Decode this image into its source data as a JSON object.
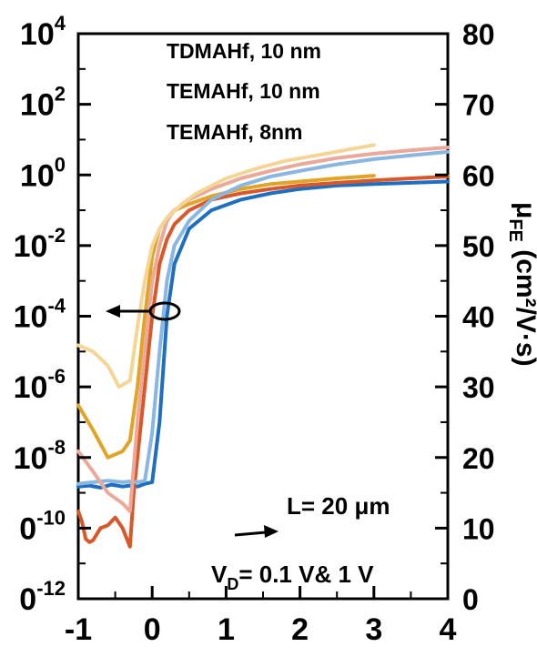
{
  "chart_data": {
    "type": "line",
    "title": "",
    "xlabel": "",
    "xlim": [
      -1,
      4
    ],
    "x_ticks": [
      "-1",
      "0",
      "1",
      "2",
      "3",
      "4"
    ],
    "y_left": {
      "scale": "log",
      "ylim": [
        1e-12,
        10000.0
      ],
      "tick_labels": [
        {
          "base": "10",
          "exp": "4",
          "value": 10000.0
        },
        {
          "base": "10",
          "exp": "2",
          "value": 100.0
        },
        {
          "base": "10",
          "exp": "0",
          "value": 1.0
        },
        {
          "base": "10",
          "exp": "-2",
          "value": 0.01
        },
        {
          "base": "10",
          "exp": "-4",
          "value": 0.0001
        },
        {
          "base": "10",
          "exp": "-6",
          "value": 1e-06
        },
        {
          "base": "10",
          "exp": "-8",
          "value": 1e-08
        },
        {
          "base": "0",
          "exp": "-10",
          "value": 1e-10
        },
        {
          "base": "0",
          "exp": "-12",
          "value": 1e-12
        }
      ]
    },
    "y_right": {
      "ylim": [
        0,
        80
      ],
      "tick_labels": [
        "80",
        "70",
        "60",
        "50",
        "40",
        "30",
        "20",
        "10",
        "0"
      ],
      "tick_values": [
        80,
        70,
        60,
        50,
        40,
        30,
        20,
        10,
        0
      ],
      "label_main": "μ",
      "label_sub": "FE",
      "label_rest": " (cm²/V·s)"
    },
    "legend": {
      "placement": "top-center",
      "entries": [
        "TDMAHf, 10 nm",
        "TEMAHf, 10 nm",
        "TEMAHf, 8nm"
      ]
    },
    "annotations": {
      "length_prefix": "L",
      "length_rest": "= 20 μm",
      "vd_main": "V",
      "vd_sub": "D",
      "vd_rest": "= 0.1 V& 1 V"
    },
    "series": [
      {
        "axis": "left",
        "color": "#1f6fc0",
        "x": [
          -1.0,
          -0.85,
          -0.7,
          -0.55,
          -0.4,
          -0.3,
          -0.2,
          -0.1,
          0.0,
          0.1,
          0.2,
          0.3,
          0.5,
          0.8,
          1.2,
          1.6,
          2.0,
          2.5,
          3.0,
          3.5,
          4.0
        ],
        "y": [
          1.5e-09,
          1.6e-09,
          1.4e-09,
          1.7e-09,
          1.5e-09,
          1.6e-09,
          1.5e-09,
          1.8e-09,
          2e-09,
          1e-07,
          0.0001,
          0.003,
          0.03,
          0.1,
          0.2,
          0.3,
          0.4,
          0.5,
          0.55,
          0.6,
          0.65
        ]
      },
      {
        "axis": "left",
        "color": "#d9582a",
        "x": [
          -1.0,
          -0.95,
          -0.9,
          -0.85,
          -0.8,
          -0.7,
          -0.6,
          -0.5,
          -0.4,
          -0.3,
          -0.25,
          -0.2,
          -0.1,
          0.0,
          0.1,
          0.2,
          0.3,
          0.5,
          0.8,
          1.2,
          1.6,
          2.0,
          2.5,
          3.0,
          3.5,
          4.0
        ],
        "y": [
          3e-10,
          1.5e-10,
          5e-11,
          4e-11,
          4.5e-11,
          1e-10,
          1.2e-10,
          2e-10,
          1e-10,
          3e-11,
          1e-09,
          1e-08,
          1e-06,
          0.0001,
          0.003,
          0.015,
          0.04,
          0.1,
          0.2,
          0.3,
          0.4,
          0.5,
          0.6,
          0.7,
          0.8,
          0.9
        ]
      },
      {
        "axis": "left",
        "color": "#e0a526",
        "x": [
          -1.0,
          -0.8,
          -0.6,
          -0.4,
          -0.3,
          -0.2,
          -0.1,
          0.0,
          0.1,
          0.2,
          0.3,
          0.5,
          0.8,
          1.2,
          1.6,
          2.0,
          2.5,
          3.0
        ],
        "y": [
          3e-07,
          6e-08,
          1e-08,
          1.5e-08,
          3e-08,
          1e-06,
          0.0001,
          0.005,
          0.03,
          0.06,
          0.1,
          0.15,
          0.25,
          0.4,
          0.55,
          0.65,
          0.8,
          0.95
        ]
      },
      {
        "axis": "left",
        "color": "#8ab7e2",
        "x": [
          -1.0,
          -0.8,
          -0.6,
          -0.4,
          -0.3,
          -0.2,
          -0.1,
          0.0,
          0.1,
          0.2,
          0.3,
          0.5,
          0.8,
          1.2,
          1.6,
          2.0,
          2.5,
          3.0,
          3.5,
          4.0
        ],
        "y": [
          1.8e-09,
          2e-09,
          2.2e-09,
          2e-09,
          2.1e-09,
          2e-09,
          2.2e-09,
          5e-08,
          1e-05,
          0.001,
          0.01,
          0.05,
          0.2,
          0.5,
          0.9,
          1.3,
          2.0,
          2.8,
          3.6,
          4.5
        ]
      },
      {
        "axis": "left",
        "color": "#eba99a",
        "x": [
          -1.0,
          -0.8,
          -0.6,
          -0.4,
          -0.3,
          -0.2,
          -0.1,
          0.0,
          0.1,
          0.2,
          0.3,
          0.5,
          0.8,
          1.2,
          1.6,
          2.0,
          2.5,
          3.0,
          3.5,
          4.0
        ],
        "y": [
          1.5e-08,
          4e-09,
          1e-09,
          5e-10,
          3e-10,
          1e-07,
          1e-05,
          0.001,
          0.01,
          0.05,
          0.1,
          0.2,
          0.4,
          0.8,
          1.3,
          2.0,
          3.0,
          4.0,
          5.0,
          6.0
        ]
      },
      {
        "axis": "left",
        "color": "#f4d596",
        "x": [
          -1.0,
          -0.8,
          -0.6,
          -0.45,
          -0.3,
          -0.2,
          -0.1,
          0.0,
          0.1,
          0.2,
          0.4,
          0.6,
          1.0,
          1.4,
          1.8,
          2.2,
          2.6,
          3.0
        ],
        "y": [
          1.5e-05,
          1e-05,
          4e-06,
          1e-06,
          1.5e-06,
          5e-05,
          0.001,
          0.01,
          0.03,
          0.06,
          0.15,
          0.3,
          0.8,
          1.5,
          2.5,
          3.5,
          5.0,
          7.0
        ]
      }
    ]
  }
}
